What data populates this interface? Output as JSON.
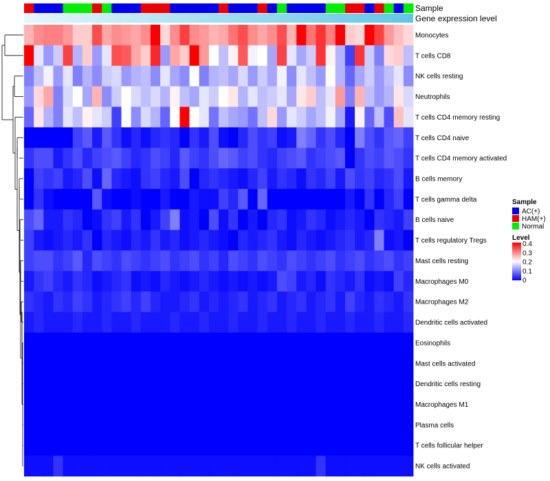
{
  "chart_data": {
    "type": "heatmap",
    "title": "",
    "annotations": {
      "sample_label": "Sample",
      "expression_label": "Gene expression level",
      "sample_groups": [
        "HAM(+)",
        "AC(+)",
        "AC(+)",
        "AC(+)",
        "Normal",
        "Normal",
        "Normal",
        "HAM(+)",
        "Normal",
        "AC(+)",
        "AC(+)",
        "AC(+)",
        "HAM(+)",
        "HAM(+)",
        "HAM(+)",
        "AC(+)",
        "AC(+)",
        "AC(+)",
        "AC(+)",
        "AC(+)",
        "HAM(+)",
        "AC(+)",
        "AC(+)",
        "AC(+)",
        "HAM(+)",
        "AC(+)",
        "Normal",
        "AC(+)",
        "AC(+)",
        "AC(+)",
        "AC(+)",
        "Normal",
        "Normal",
        "HAM(+)",
        "HAM(+)",
        "AC(+)",
        "HAM(+)",
        "Normal",
        "AC(+)",
        "Normal"
      ]
    },
    "rows": [
      "Monocytes",
      "T cells CD8",
      "NK cells resting",
      "Neutrophils",
      "T cells CD4 memory resting",
      "T cells CD4 naive",
      "T cells CD4 memory activated",
      "B cells memory",
      "T cells gamma delta",
      "B cells naive",
      "T cells regulatory  Tregs",
      "Mast cells resting",
      "Macrophages M0",
      "Macrophages M2",
      "Dendritic cells activated",
      "Eosinophils",
      "Mast cells activated",
      "Dendritic cells resting",
      "Macrophages M1",
      "Plasma cells",
      "T cells follicular helper",
      "NK cells activated"
    ],
    "values": [
      [
        0.26,
        0.29,
        0.3,
        0.3,
        0.28,
        0.24,
        0.24,
        0.34,
        0.27,
        0.29,
        0.28,
        0.27,
        0.29,
        0.4,
        0.23,
        0.29,
        0.35,
        0.29,
        0.28,
        0.26,
        0.27,
        0.31,
        0.34,
        0.29,
        0.27,
        0.29,
        0.34,
        0.26,
        0.42,
        0.31,
        0.36,
        0.3,
        0.41,
        0.24,
        0.23,
        0.4,
        0.35,
        0.28,
        0.25,
        0.23
      ],
      [
        0.4,
        0.18,
        0.12,
        0.16,
        0.35,
        0.14,
        0.24,
        0.12,
        0.18,
        0.34,
        0.33,
        0.27,
        0.24,
        0.37,
        0.12,
        0.27,
        0.24,
        0.4,
        0.28,
        0.2,
        0.15,
        0.21,
        0.33,
        0.19,
        0.2,
        0.13,
        0.35,
        0.18,
        0.13,
        0.16,
        0.36,
        0.21,
        0.14,
        0.05,
        0.36,
        0.16,
        0.1,
        0.23,
        0.24,
        0.15
      ],
      [
        0.1,
        0.15,
        0.19,
        0.12,
        0.18,
        0.1,
        0.14,
        0.11,
        0.16,
        0.17,
        0.12,
        0.14,
        0.15,
        0.11,
        0.18,
        0.13,
        0.11,
        0.2,
        0.1,
        0.14,
        0.15,
        0.13,
        0.17,
        0.12,
        0.16,
        0.13,
        0.19,
        0.11,
        0.18,
        0.15,
        0.12,
        0.2,
        0.14,
        0.08,
        0.13,
        0.16,
        0.12,
        0.15,
        0.18,
        0.11
      ],
      [
        0.12,
        0.23,
        0.27,
        0.1,
        0.17,
        0.2,
        0.13,
        0.26,
        0.11,
        0.16,
        0.2,
        0.17,
        0.15,
        0.17,
        0.14,
        0.21,
        0.15,
        0.13,
        0.18,
        0.16,
        0.2,
        0.22,
        0.14,
        0.18,
        0.15,
        0.16,
        0.18,
        0.13,
        0.22,
        0.24,
        0.15,
        0.18,
        0.28,
        0.1,
        0.26,
        0.15,
        0.12,
        0.14,
        0.22,
        0.17
      ],
      [
        0.08,
        0.22,
        0.14,
        0.1,
        0.18,
        0.15,
        0.21,
        0.18,
        0.16,
        0.05,
        0.2,
        0.11,
        0.17,
        0.14,
        0.08,
        0.2,
        0.4,
        0.2,
        0.18,
        0.09,
        0.15,
        0.13,
        0.12,
        0.09,
        0.15,
        0.23,
        0.12,
        0.18,
        0.16,
        0.13,
        0.15,
        0.19,
        0.13,
        0.02,
        0.21,
        0.08,
        0.15,
        0.06,
        0.25,
        0.18
      ],
      [
        0.0,
        0.0,
        0.0,
        0.0,
        0.0,
        0.05,
        0.07,
        0.02,
        0.07,
        0.04,
        0.01,
        0.03,
        0.01,
        0.03,
        0.04,
        0.03,
        0.0,
        0.04,
        0.02,
        0.06,
        0.01,
        0.0,
        0.03,
        0.06,
        0.04,
        0.05,
        0.01,
        0.02,
        0.1,
        0.08,
        0.04,
        0.06,
        0.03,
        0.0,
        0.1,
        0.06,
        0.04,
        0.07,
        0.08,
        0.05
      ],
      [
        0.04,
        0.06,
        0.06,
        0.02,
        0.04,
        0.06,
        0.03,
        0.05,
        0.06,
        0.07,
        0.05,
        0.03,
        0.04,
        0.06,
        0.05,
        0.03,
        0.07,
        0.05,
        0.04,
        0.06,
        0.08,
        0.07,
        0.05,
        0.06,
        0.04,
        0.03,
        0.05,
        0.06,
        0.07,
        0.04,
        0.05,
        0.06,
        0.07,
        0.0,
        0.04,
        0.06,
        0.05,
        0.07,
        0.06,
        0.04
      ],
      [
        0.0,
        0.05,
        0.04,
        0.05,
        0.02,
        0.03,
        0.06,
        0.01,
        0.08,
        0.03,
        0.02,
        0.01,
        0.04,
        0.05,
        0.03,
        0.02,
        0.06,
        0.0,
        0.03,
        0.04,
        0.03,
        0.02,
        0.01,
        0.03,
        0.05,
        0.02,
        0.04,
        0.03,
        0.01,
        0.04,
        0.03,
        0.05,
        0.02,
        0.06,
        0.04,
        0.05,
        0.03,
        0.04,
        0.06,
        0.02
      ],
      [
        0.0,
        0.04,
        0.01,
        0.0,
        0.0,
        0.0,
        0.0,
        0.07,
        0.01,
        0.0,
        0.0,
        0.01,
        0.0,
        0.0,
        0.02,
        0.0,
        0.0,
        0.02,
        0.01,
        0.01,
        0.05,
        0.03,
        0.07,
        0.0,
        0.08,
        0.0,
        0.0,
        0.0,
        0.0,
        0.0,
        0.0,
        0.0,
        0.0,
        0.02,
        0.0,
        0.04,
        0.0,
        0.03,
        0.05,
        0.0
      ],
      [
        0.06,
        0.08,
        0.02,
        0.02,
        0.04,
        0.03,
        0.0,
        0.01,
        0.04,
        0.05,
        0.02,
        0.04,
        0.0,
        0.02,
        0.05,
        0.1,
        0.01,
        0.02,
        0.0,
        0.06,
        0.01,
        0.04,
        0.0,
        0.02,
        0.0,
        0.03,
        0.04,
        0.01,
        0.02,
        0.04,
        0.03,
        0.01,
        0.02,
        0.03,
        0.02,
        0.0,
        0.04,
        0.03,
        0.02,
        0.05
      ],
      [
        0.05,
        0.02,
        0.01,
        0.02,
        0.03,
        0.02,
        0.04,
        0.0,
        0.03,
        0.02,
        0.01,
        0.03,
        0.02,
        0.04,
        0.02,
        0.03,
        0.01,
        0.02,
        0.03,
        0.02,
        0.01,
        0.0,
        0.03,
        0.02,
        0.03,
        0.04,
        0.02,
        0.01,
        0.03,
        0.02,
        0.01,
        0.02,
        0.03,
        0.04,
        0.02,
        0.03,
        0.1,
        0.01,
        0.02,
        0.0
      ],
      [
        0.05,
        0.06,
        0.06,
        0.04,
        0.05,
        0.07,
        0.03,
        0.06,
        0.05,
        0.04,
        0.06,
        0.05,
        0.04,
        0.05,
        0.06,
        0.04,
        0.05,
        0.06,
        0.04,
        0.05,
        0.03,
        0.06,
        0.05,
        0.04,
        0.06,
        0.05,
        0.04,
        0.06,
        0.05,
        0.04,
        0.05,
        0.06,
        0.04,
        0.05,
        0.06,
        0.04,
        0.05,
        0.06,
        0.04,
        0.05
      ],
      [
        0.02,
        0.04,
        0.05,
        0.03,
        0.02,
        0.04,
        0.03,
        0.01,
        0.02,
        0.03,
        0.04,
        0.01,
        0.02,
        0.01,
        0.03,
        0.02,
        0.01,
        0.02,
        0.03,
        0.02,
        0.01,
        0.02,
        0.01,
        0.02,
        0.01,
        0.02,
        0.06,
        0.05,
        0.02,
        0.03,
        0.01,
        0.04,
        0.03,
        0.02,
        0.04,
        0.01,
        0.02,
        0.01,
        0.05,
        0.03
      ],
      [
        0.04,
        0.03,
        0.02,
        0.04,
        0.03,
        0.05,
        0.04,
        0.02,
        0.03,
        0.04,
        0.05,
        0.03,
        0.05,
        0.03,
        0.02,
        0.02,
        0.03,
        0.04,
        0.02,
        0.03,
        0.02,
        0.03,
        0.04,
        0.02,
        0.03,
        0.04,
        0.02,
        0.03,
        0.04,
        0.02,
        0.03,
        0.04,
        0.02,
        0.05,
        0.03,
        0.02,
        0.04,
        0.03,
        0.02,
        0.04
      ],
      [
        0.02,
        0.03,
        0.02,
        0.02,
        0.02,
        0.03,
        0.02,
        0.02,
        0.03,
        0.02,
        0.02,
        0.03,
        0.02,
        0.02,
        0.02,
        0.03,
        0.02,
        0.02,
        0.03,
        0.02,
        0.02,
        0.03,
        0.02,
        0.02,
        0.03,
        0.02,
        0.02,
        0.03,
        0.02,
        0.02,
        0.03,
        0.02,
        0.02,
        0.03,
        0.02,
        0.02,
        0.03,
        0.02,
        0.02,
        0.03
      ],
      [
        0,
        0,
        0,
        0,
        0,
        0,
        0,
        0,
        0,
        0,
        0,
        0,
        0,
        0,
        0,
        0,
        0,
        0,
        0,
        0,
        0,
        0,
        0,
        0,
        0,
        0,
        0,
        0,
        0,
        0,
        0,
        0,
        0,
        0,
        0,
        0,
        0,
        0,
        0,
        0
      ],
      [
        0,
        0,
        0,
        0,
        0,
        0,
        0,
        0,
        0,
        0,
        0,
        0,
        0,
        0,
        0,
        0,
        0,
        0,
        0,
        0,
        0,
        0,
        0,
        0,
        0,
        0,
        0,
        0,
        0,
        0,
        0,
        0,
        0,
        0,
        0,
        0,
        0,
        0,
        0,
        0
      ],
      [
        0,
        0,
        0,
        0,
        0,
        0,
        0,
        0,
        0,
        0,
        0,
        0,
        0,
        0,
        0,
        0,
        0,
        0,
        0,
        0,
        0,
        0,
        0,
        0,
        0,
        0,
        0,
        0,
        0,
        0,
        0,
        0,
        0,
        0,
        0,
        0,
        0,
        0,
        0,
        0
      ],
      [
        0,
        0,
        0,
        0,
        0,
        0,
        0,
        0,
        0,
        0,
        0,
        0,
        0,
        0,
        0,
        0,
        0,
        0,
        0,
        0,
        0,
        0,
        0,
        0,
        0,
        0,
        0,
        0,
        0,
        0,
        0,
        0,
        0,
        0,
        0,
        0,
        0,
        0,
        0,
        0
      ],
      [
        0,
        0,
        0,
        0,
        0,
        0,
        0,
        0,
        0,
        0,
        0,
        0,
        0,
        0,
        0,
        0,
        0,
        0,
        0,
        0,
        0,
        0,
        0,
        0,
        0,
        0,
        0,
        0,
        0,
        0,
        0,
        0,
        0,
        0,
        0,
        0,
        0,
        0,
        0,
        0
      ],
      [
        0,
        0,
        0,
        0,
        0,
        0,
        0,
        0,
        0,
        0,
        0,
        0,
        0,
        0,
        0,
        0,
        0,
        0,
        0,
        0,
        0,
        0,
        0,
        0,
        0,
        0,
        0,
        0,
        0,
        0,
        0,
        0,
        0,
        0,
        0,
        0,
        0,
        0,
        0,
        0
      ],
      [
        0.01,
        0.01,
        0.01,
        0.04,
        0.01,
        0.01,
        0.01,
        0.01,
        0.01,
        0.01,
        0.01,
        0.01,
        0.01,
        0.01,
        0.01,
        0.01,
        0.01,
        0.01,
        0.01,
        0.01,
        0.01,
        0.01,
        0.01,
        0.01,
        0.01,
        0.01,
        0.01,
        0.01,
        0.01,
        0.01,
        0.04,
        0.01,
        0.01,
        0.01,
        0.01,
        0.01,
        0.01,
        0.01,
        0.01,
        0.01
      ]
    ],
    "color_scale": {
      "low": "#0000FF",
      "mid": "#FFFFFF",
      "high": "#FF0000",
      "min": 0,
      "mid_value": 0.2,
      "max": 0.4
    },
    "legends": {
      "sample": {
        "title": "Sample",
        "entries": [
          {
            "label": "AC(+)",
            "color": "#0000EE"
          },
          {
            "label": "HAM(+)",
            "color": "#EE0000"
          },
          {
            "label": "Normal",
            "color": "#00EE00"
          }
        ]
      },
      "level": {
        "title": "Level",
        "ticks": [
          "0.4",
          "0.3",
          "0.2",
          "0.1",
          "0"
        ]
      }
    },
    "expression_bar_colors": [
      "#E6F6FC",
      "#5FC6E8"
    ],
    "dendrogram": "row clustering tree (left side)"
  }
}
